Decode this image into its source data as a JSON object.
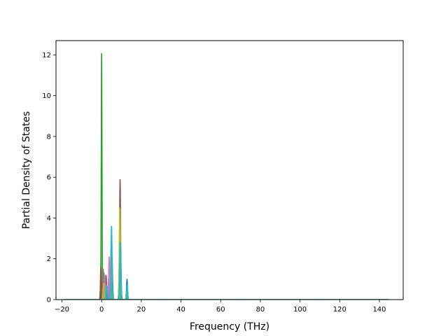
{
  "chart_data": {
    "type": "line",
    "title": "",
    "xlabel": "Frequency (THz)",
    "ylabel": "Partial Density of States",
    "xlim": [
      -23,
      152
    ],
    "ylim": [
      0,
      12.7
    ],
    "x_ticks": [
      -20,
      0,
      20,
      40,
      60,
      80,
      100,
      120,
      140
    ],
    "y_ticks": [
      0,
      2,
      4,
      6,
      8,
      10,
      12
    ],
    "grid": false,
    "legend": "none",
    "baseline_range": [
      -19,
      145
    ],
    "series": [
      {
        "color": "#1f77b4",
        "peaks": [
          [
            0.0,
            0.75,
            0.22
          ],
          [
            2.0,
            0.45,
            0.3
          ],
          [
            5.0,
            1.1,
            0.3
          ],
          [
            12.8,
            1.0,
            0.25
          ]
        ]
      },
      {
        "color": "#ff7f0e",
        "peaks": [
          [
            0.5,
            1.4,
            0.25
          ],
          [
            4.8,
            2.6,
            0.3
          ],
          [
            9.2,
            1.9,
            0.3
          ]
        ]
      },
      {
        "color": "#2ca02c",
        "peaks": [
          [
            -0.6,
            0.5,
            0.2
          ],
          [
            0.0,
            12.1,
            0.2
          ],
          [
            9.5,
            0.5,
            0.25
          ]
        ]
      },
      {
        "color": "#d62728",
        "peaks": [
          [
            0.5,
            0.9,
            0.25
          ],
          [
            4.0,
            0.6,
            0.3
          ],
          [
            9.3,
            1.5,
            0.3
          ]
        ]
      },
      {
        "color": "#9467bd",
        "peaks": [
          [
            1.2,
            1.3,
            0.25
          ],
          [
            3.5,
            1.0,
            0.3
          ],
          [
            9.0,
            0.9,
            0.3
          ]
        ]
      },
      {
        "color": "#8c564b",
        "peaks": [
          [
            -0.4,
            1.6,
            0.2
          ],
          [
            2.2,
            1.2,
            0.3
          ],
          [
            5.2,
            2.1,
            0.3
          ],
          [
            9.3,
            5.9,
            0.28
          ]
        ]
      },
      {
        "color": "#e377c2",
        "peaks": [
          [
            1.5,
            1.0,
            0.3
          ],
          [
            3.8,
            2.1,
            0.3
          ],
          [
            9.0,
            1.2,
            0.3
          ]
        ]
      },
      {
        "color": "#7f7f7f",
        "peaks": [
          [
            0.8,
            1.5,
            0.25
          ],
          [
            5.0,
            0.9,
            0.3
          ],
          [
            9.5,
            2.6,
            0.3
          ]
        ]
      },
      {
        "color": "#bcbd22",
        "peaks": [
          [
            1.0,
            0.8,
            0.25
          ],
          [
            5.0,
            2.0,
            0.3
          ],
          [
            9.2,
            4.5,
            0.3
          ],
          [
            12.5,
            0.4,
            0.25
          ]
        ]
      },
      {
        "color": "#17becf",
        "peaks": [
          [
            2.5,
            0.7,
            0.3
          ],
          [
            5.0,
            3.6,
            0.28
          ],
          [
            9.4,
            2.8,
            0.28
          ],
          [
            12.9,
            0.7,
            0.25
          ]
        ]
      }
    ]
  }
}
